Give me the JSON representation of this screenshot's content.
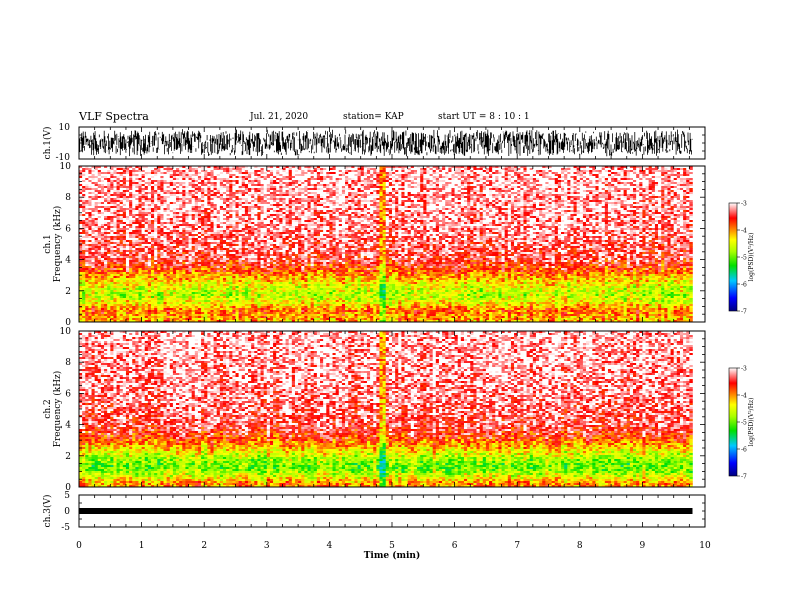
{
  "header": {
    "title": "VLF Spectra",
    "date": "Jul. 21, 2020",
    "station": "station= KAP",
    "start_ut": "start UT =  8 : 10 : 1"
  },
  "chart_data": [
    {
      "type": "line",
      "panel": "ch1-waveform",
      "ylabel": "ch.1(V)",
      "ylim": [
        -10,
        10
      ],
      "yticks": [
        "10",
        "-10"
      ],
      "xlim": [
        0,
        10
      ],
      "description_of_signal": "dense noise waveform spanning roughly -8 to 8 V over 0–9.8 min"
    },
    {
      "type": "heatmap",
      "panel": "ch1-spectrogram",
      "ylabel": "ch.1\nFrequency (kHz)",
      "ylabel_lines": [
        "ch.1",
        "Frequency (kHz)"
      ],
      "ylim": [
        0,
        10
      ],
      "yticks": [
        "0",
        "2",
        "4",
        "6",
        "8",
        "10"
      ],
      "xlim": [
        0,
        10
      ],
      "data_extent_min": 9.8,
      "colorbar": {
        "label": "log(PSD)(V²/Hz)",
        "range": [
          -7,
          -3
        ],
        "ticks": [
          "-3",
          "-4",
          "-5",
          "-6",
          "-7"
        ]
      },
      "band_profile_log_psd": [
        {
          "f": 0.25,
          "v": -4.1
        },
        {
          "f": 0.75,
          "v": -3.9
        },
        {
          "f": 1.25,
          "v": -4.4
        },
        {
          "f": 1.75,
          "v": -4.7
        },
        {
          "f": 2.25,
          "v": -4.5
        },
        {
          "f": 2.75,
          "v": -4.2
        },
        {
          "f": 3.25,
          "v": -3.8
        },
        {
          "f": 4.0,
          "v": -3.4
        },
        {
          "f": 6.0,
          "v": -3.2
        },
        {
          "f": 8.0,
          "v": -3.15
        },
        {
          "f": 9.75,
          "v": -3.1
        }
      ]
    },
    {
      "type": "heatmap",
      "panel": "ch2-spectrogram",
      "ylabel_lines": [
        "ch.2",
        "Frequency (kHz)"
      ],
      "ylim": [
        0,
        10
      ],
      "yticks": [
        "0",
        "2",
        "4",
        "6",
        "8",
        "10"
      ],
      "xlim": [
        0,
        10
      ],
      "data_extent_min": 9.8,
      "colorbar": {
        "label": "log(PSD)(V²/Hz)",
        "range": [
          -7,
          -3
        ],
        "ticks": [
          "-3",
          "-4",
          "-5",
          "-6",
          "-7"
        ]
      },
      "band_profile_log_psd": [
        {
          "f": 0.25,
          "v": -4.0
        },
        {
          "f": 0.75,
          "v": -4.6
        },
        {
          "f": 1.25,
          "v": -5.0
        },
        {
          "f": 1.75,
          "v": -4.8
        },
        {
          "f": 2.25,
          "v": -4.4
        },
        {
          "f": 2.75,
          "v": -4.0
        },
        {
          "f": 3.25,
          "v": -3.6
        },
        {
          "f": 4.0,
          "v": -3.35
        },
        {
          "f": 6.0,
          "v": -3.2
        },
        {
          "f": 8.0,
          "v": -3.15
        },
        {
          "f": 9.75,
          "v": -3.1
        }
      ]
    },
    {
      "type": "line",
      "panel": "ch3-waveform",
      "ylabel": "ch.3(V)",
      "ylim": [
        -5,
        5
      ],
      "yticks": [
        "5",
        "0",
        "-5"
      ],
      "xlim": [
        0,
        10
      ],
      "level_v": 0.0,
      "xlabel": "Time (min)",
      "xticks": [
        "0",
        "1",
        "2",
        "3",
        "4",
        "5",
        "6",
        "7",
        "8",
        "9",
        "10"
      ]
    }
  ]
}
